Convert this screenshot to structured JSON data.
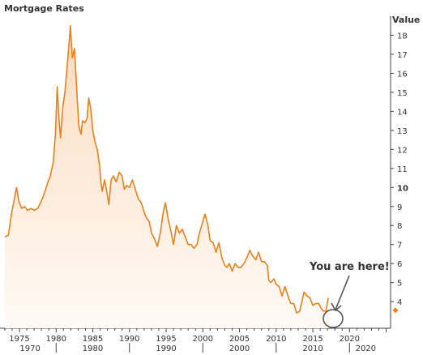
{
  "chart_data": {
    "type": "area",
    "title": "Mortgage Rates",
    "ylabel": "Value",
    "xlim": [
      1972.9,
      2025.6
    ],
    "ylim": [
      2.6,
      19.0
    ],
    "y_ticks": [
      4,
      5,
      6,
      7,
      8,
      9,
      10,
      11,
      12,
      13,
      14,
      15,
      16,
      17,
      18
    ],
    "y_tick_highlight": 10,
    "x_ticks": [
      "1975",
      "1980",
      "1985",
      "1990",
      "1995",
      "2000",
      "2005",
      "2010",
      "2015",
      "2020"
    ],
    "x_decades": [
      "1970",
      "1980",
      "1990",
      "2000",
      "2010",
      "2020"
    ],
    "grid": false,
    "legend": "none",
    "series": [
      {
        "x": [
          1973.0,
          1973.5,
          1973.9,
          1974.3,
          1974.6,
          1974.9,
          1975.3,
          1975.7,
          1976.1,
          1976.6,
          1977.0,
          1977.5,
          1978.0,
          1978.4,
          1978.8,
          1979.2,
          1979.6,
          1979.9,
          1980.15,
          1980.4,
          1980.6,
          1980.9,
          1981.2,
          1981.5,
          1981.75,
          1981.95,
          1982.2,
          1982.5,
          1982.8,
          1983.1,
          1983.4,
          1983.6,
          1983.9,
          1984.2,
          1984.45,
          1984.7,
          1985.0,
          1985.3,
          1985.6,
          1985.9,
          1986.1,
          1986.3,
          1986.6,
          1986.9,
          1987.2,
          1987.5,
          1987.8,
          1988.2,
          1988.6,
          1989.0,
          1989.3,
          1989.6,
          1990.0,
          1990.4,
          1990.8,
          1991.2,
          1991.6,
          1992.0,
          1992.3,
          1992.7,
          1993.0,
          1993.4,
          1993.8,
          1994.2,
          1994.6,
          1994.9,
          1995.3,
          1995.7,
          1996.0,
          1996.4,
          1996.8,
          1997.2,
          1997.6,
          1998.0,
          1998.4,
          1998.8,
          1999.2,
          1999.6,
          2000.0,
          2000.3,
          2000.7,
          2001.0,
          2001.4,
          2001.8,
          2002.2,
          2002.6,
          2003.0,
          2003.3,
          2003.6,
          2004.0,
          2004.4,
          2004.8,
          2005.2,
          2005.6,
          2006.0,
          2006.4,
          2006.8,
          2007.2,
          2007.6,
          2008.0,
          2008.4,
          2008.8,
          2009.0,
          2009.3,
          2009.7,
          2010.0,
          2010.4,
          2010.8,
          2011.2,
          2011.6,
          2012.0,
          2012.4,
          2012.8,
          2013.2,
          2013.5,
          2013.8,
          2014.2,
          2014.6,
          2015.0,
          2015.4,
          2015.8,
          2016.2,
          2016.5,
          2016.8,
          2017.1
        ],
        "y": [
          7.4,
          7.5,
          8.6,
          9.4,
          10.0,
          9.3,
          8.9,
          9.0,
          8.8,
          8.9,
          8.8,
          8.9,
          9.3,
          9.7,
          10.2,
          10.6,
          11.3,
          12.8,
          15.3,
          13.5,
          12.6,
          14.2,
          15.0,
          16.3,
          17.5,
          18.5,
          16.8,
          17.3,
          15.2,
          13.2,
          12.8,
          13.5,
          13.4,
          13.6,
          14.7,
          14.2,
          13.0,
          12.4,
          12.0,
          11.2,
          10.3,
          9.8,
          10.4,
          9.8,
          9.1,
          10.4,
          10.6,
          10.3,
          10.8,
          10.6,
          9.9,
          10.1,
          10.0,
          10.4,
          9.9,
          9.4,
          9.2,
          8.7,
          8.4,
          8.2,
          7.6,
          7.3,
          6.9,
          7.6,
          8.7,
          9.2,
          8.3,
          7.6,
          7.0,
          8.0,
          7.6,
          7.8,
          7.4,
          7.0,
          7.0,
          6.8,
          7.0,
          7.7,
          8.2,
          8.6,
          8.0,
          7.2,
          7.1,
          6.6,
          7.1,
          6.3,
          5.9,
          5.8,
          6.0,
          5.6,
          6.0,
          5.8,
          5.8,
          6.0,
          6.3,
          6.7,
          6.4,
          6.2,
          6.6,
          6.1,
          6.1,
          5.9,
          5.1,
          5.0,
          5.2,
          4.9,
          4.8,
          4.3,
          4.8,
          4.3,
          3.9,
          3.9,
          3.4,
          3.5,
          4.0,
          4.5,
          4.3,
          4.2,
          3.8,
          3.9,
          3.9,
          3.6,
          3.5,
          3.5,
          4.2
        ]
      }
    ],
    "marker": {
      "y": 3.55,
      "color": "#e8801c"
    },
    "annotations": [
      {
        "text": "You are here!",
        "x": 2016.7,
        "y": 3.45
      }
    ],
    "colors": {
      "line": "#e8801c",
      "fill_top": "#fbdcc0",
      "fill_bottom": "#fffaf5",
      "axis": "#444444",
      "annotation": "#555555"
    }
  }
}
